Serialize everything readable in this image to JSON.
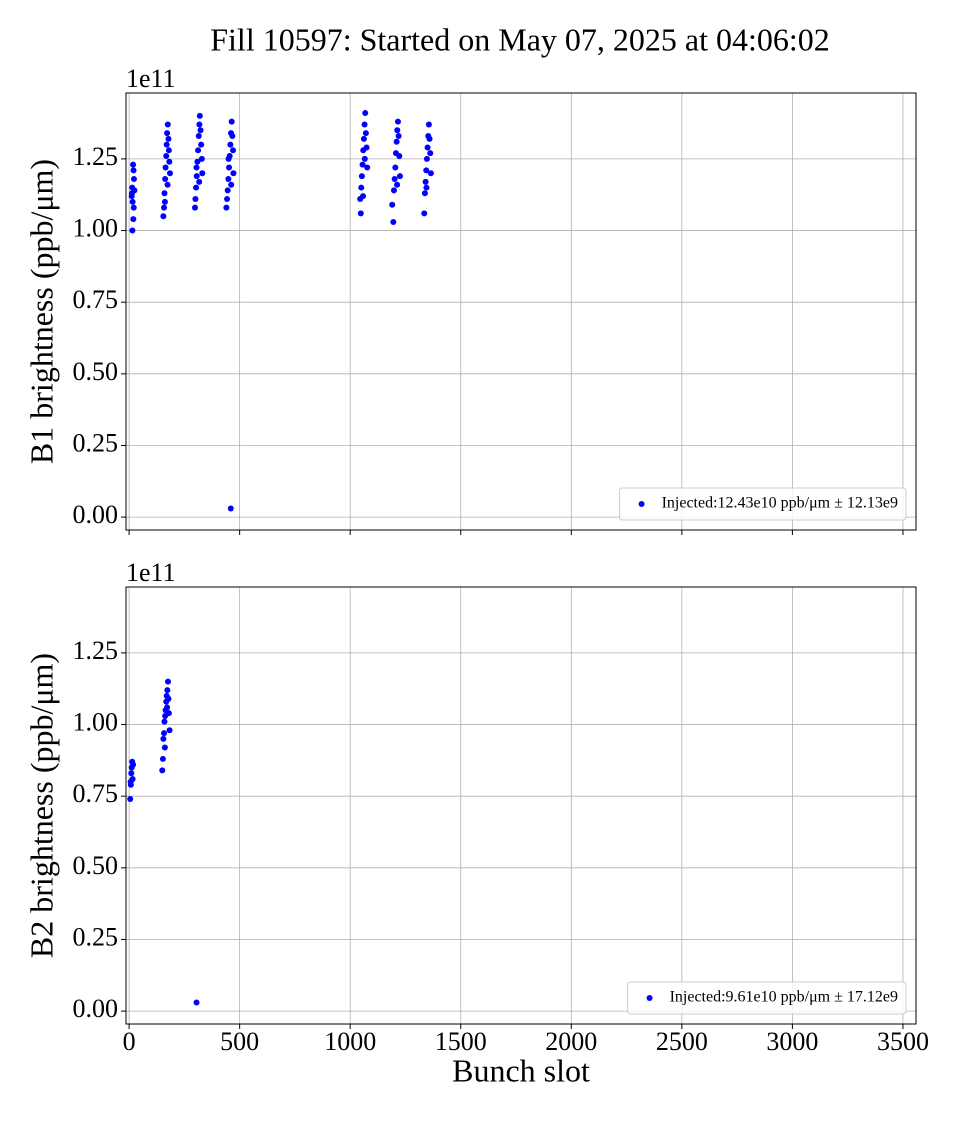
{
  "title": "Fill 10597: Started on May 07, 2025 at 04:06:02",
  "chart_data": [
    {
      "type": "scatter",
      "ylabel": "B1 brightness (ppb/μm)",
      "offset_text": "1e11",
      "xlim": [
        -14,
        3559
      ],
      "ylim": [
        -0.045,
        1.48
      ],
      "xticks": [
        0,
        500,
        1000,
        1500,
        2000,
        2500,
        3000,
        3500
      ],
      "yticks": [
        {
          "value": 0,
          "label": "0.00"
        },
        {
          "value": 0.25,
          "label": "0.25"
        },
        {
          "value": 0.5,
          "label": "0.50"
        },
        {
          "value": 0.75,
          "label": "0.75"
        },
        {
          "value": 1,
          "label": "1.00"
        },
        {
          "value": 1.25,
          "label": "1.25"
        }
      ],
      "grid": true,
      "legend": "lower right",
      "series": [
        {
          "name": "Injected:12.43e10 ppb/μm ± 12.13e9",
          "color": "#0000ff",
          "x": [
            12,
            14,
            16,
            18,
            20,
            22,
            15,
            19,
            21,
            24,
            13,
            155,
            158,
            160,
            163,
            165,
            168,
            170,
            172,
            175,
            178,
            180,
            182,
            185,
            162,
            174,
            298,
            300,
            303,
            306,
            309,
            312,
            315,
            318,
            320,
            323,
            326,
            329,
            331,
            305,
            317,
            440,
            443,
            446,
            449,
            452,
            455,
            458,
            461,
            464,
            467,
            470,
            472,
            460,
            450,
            462,
            1045,
            1048,
            1050,
            1053,
            1056,
            1059,
            1062,
            1065,
            1068,
            1071,
            1074,
            1077,
            1058,
            1066,
            1190,
            1195,
            1198,
            1201,
            1204,
            1207,
            1210,
            1213,
            1216,
            1219,
            1222,
            1225,
            1212,
            1335,
            1338,
            1341,
            1344,
            1347,
            1350,
            1353,
            1356,
            1359,
            1362,
            1365,
            1345
          ],
          "values": [
            1.12,
            1.15,
            1.1,
            1.23,
            1.21,
            1.18,
            1.0,
            1.04,
            1.08,
            1.14,
            1.13,
            1.05,
            1.08,
            1.13,
            1.18,
            1.22,
            1.26,
            1.3,
            1.34,
            1.37,
            1.32,
            1.28,
            1.24,
            1.2,
            1.1,
            1.16,
            1.08,
            1.11,
            1.15,
            1.19,
            1.24,
            1.28,
            1.33,
            1.37,
            1.4,
            1.35,
            1.3,
            1.25,
            1.2,
            1.22,
            1.17,
            1.08,
            1.11,
            1.14,
            1.18,
            1.22,
            1.26,
            1.3,
            1.34,
            1.38,
            1.33,
            1.28,
            1.2,
            0.03,
            1.25,
            1.16,
            1.11,
            1.06,
            1.15,
            1.19,
            1.23,
            1.28,
            1.32,
            1.37,
            1.41,
            1.34,
            1.29,
            1.22,
            1.12,
            1.25,
            1.09,
            1.03,
            1.14,
            1.18,
            1.22,
            1.27,
            1.31,
            1.35,
            1.38,
            1.33,
            1.26,
            1.19,
            1.16,
            1.06,
            1.13,
            1.17,
            1.21,
            1.25,
            1.29,
            1.33,
            1.37,
            1.32,
            1.27,
            1.2,
            1.15
          ]
        }
      ]
    },
    {
      "type": "scatter",
      "ylabel": "B2 brightness (ppb/μm)",
      "xlabel": "Bunch slot",
      "offset_text": "1e11",
      "xlim": [
        -14,
        3559
      ],
      "ylim": [
        -0.045,
        1.48
      ],
      "xticks": [
        0,
        500,
        1000,
        1500,
        2000,
        2500,
        3000,
        3500
      ],
      "yticks": [
        {
          "value": 0,
          "label": "0.00"
        },
        {
          "value": 0.25,
          "label": "0.25"
        },
        {
          "value": 0.5,
          "label": "0.50"
        },
        {
          "value": 0.75,
          "label": "0.75"
        },
        {
          "value": 1,
          "label": "1.00"
        },
        {
          "value": 1.25,
          "label": "1.25"
        }
      ],
      "grid": true,
      "legend": "lower right",
      "series": [
        {
          "name": "Injected:9.61e10 ppb/μm ± 17.12e9",
          "color": "#0000ff",
          "x": [
            5,
            8,
            10,
            12,
            14,
            16,
            18,
            7,
            150,
            153,
            155,
            158,
            160,
            163,
            165,
            168,
            170,
            173,
            176,
            178,
            180,
            183,
            162,
            172,
            305
          ],
          "values": [
            0.74,
            0.79,
            0.83,
            0.85,
            0.87,
            0.81,
            0.86,
            0.8,
            0.84,
            0.88,
            0.95,
            0.97,
            1.01,
            1.03,
            1.05,
            1.08,
            1.1,
            1.12,
            1.15,
            1.09,
            1.04,
            0.98,
            0.92,
            1.06,
            0.03
          ]
        }
      ]
    }
  ]
}
